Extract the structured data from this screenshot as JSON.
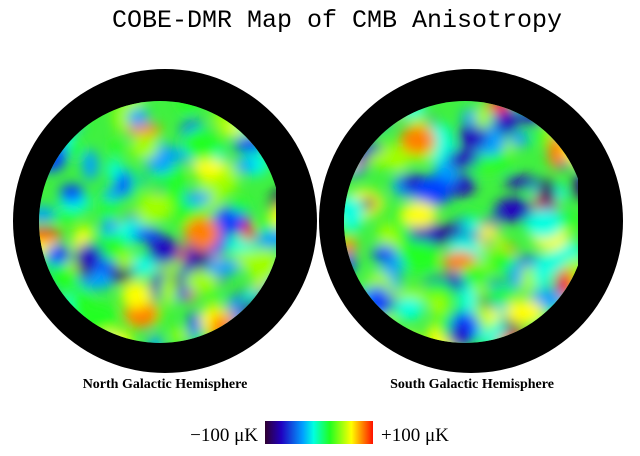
{
  "header": {
    "title": "COBE-DMR Map of CMB Anisotropy"
  },
  "maps": [
    {
      "label": "North Galactic Hemisphere"
    },
    {
      "label": "South Galactic Hemisphere"
    }
  ],
  "colorbar": {
    "min_label": "−100 μK",
    "max_label": "+100 μK"
  }
}
